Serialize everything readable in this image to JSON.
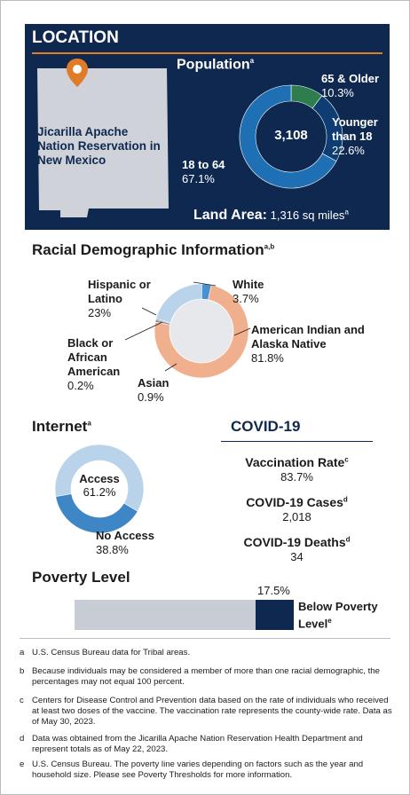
{
  "location": {
    "title": "LOCATION",
    "reservation_label": "Jicarilla Apache Nation Reservation in New Mexico",
    "pin_icon": "map-pin-icon",
    "population_title": "Population",
    "population_sup": "a",
    "population_total": "3,108",
    "land_area_label": "Land Area:",
    "land_area_value": "1,316 sq miles",
    "land_area_sup": "a"
  },
  "racial": {
    "title": "Racial Demographic Information",
    "sup": "a,b"
  },
  "internet": {
    "title": "Internet",
    "sup": "a"
  },
  "covid": {
    "title": "COVID-19",
    "vaccination_label": "Vaccination Rate",
    "vaccination_sup": "c",
    "vaccination_value": "83.7%",
    "cases_label": "COVID-19 Cases",
    "cases_sup": "d",
    "cases_value": "2,018",
    "deaths_label": "COVID-19 Deaths",
    "deaths_sup": "d",
    "deaths_value": "34"
  },
  "poverty": {
    "title": "Poverty Level",
    "value_label": "17.5%",
    "label": "Below Poverty Level",
    "sup": "e"
  },
  "footnotes": [
    {
      "key": "a",
      "text": "U.S. Census Bureau data for Tribal areas."
    },
    {
      "key": "b",
      "text": "Because individuals may be considered a member of more than one racial demographic, the percentages may not equal 100 percent."
    },
    {
      "key": "c",
      "text": "Centers for Disease Control and Prevention data based on the rate of individuals who received at least two doses of the vaccine. The vaccination rate represents the county-wide rate. Data as of May 30, 2023."
    },
    {
      "key": "d",
      "text": "Data was obtained from the Jicarilla Apache Nation Reservation Health Department and represent totals as of May 22, 2023."
    },
    {
      "key": "e",
      "text": "U.S. Census Bureau. The poverty line varies depending on factors such as the year and household size. Please see Poverty Thresholds for more information."
    }
  ],
  "chart_data": [
    {
      "type": "pie",
      "title": "Population",
      "center_label": "3,108",
      "categories": [
        "65 & Older",
        "Younger than 18",
        "18 to 64"
      ],
      "values": [
        10.3,
        22.6,
        67.1
      ],
      "value_labels": [
        "10.3%",
        "22.6%",
        "67.1%"
      ],
      "colors": [
        "#2e7d4f",
        "#0e3d73",
        "#1f6fb5"
      ]
    },
    {
      "type": "pie",
      "title": "Racial Demographic Information",
      "categories": [
        "White",
        "American Indian and Alaska Native",
        "Asian",
        "Black or African American",
        "Hispanic or Latino"
      ],
      "values": [
        3.7,
        81.8,
        0.9,
        0.2,
        23
      ],
      "value_labels": [
        "3.7%",
        "81.8%",
        "0.9%",
        "0.2%",
        "23%"
      ],
      "colors": [
        "#4a90cf",
        "#f0b08e",
        "#8a8f96",
        "#4d4d4d",
        "#b9d4ea"
      ]
    },
    {
      "type": "pie",
      "title": "Internet",
      "categories": [
        "Access",
        "No Access"
      ],
      "values": [
        61.2,
        38.8
      ],
      "value_labels": [
        "61.2%",
        "38.8%"
      ],
      "colors": [
        "#b9d4ea",
        "#3f86c6"
      ]
    },
    {
      "type": "bar",
      "title": "Poverty Level",
      "categories": [
        "Below Poverty Level"
      ],
      "values": [
        17.5
      ],
      "value_labels": [
        "17.5%"
      ],
      "ylim": [
        0,
        100
      ],
      "colors": [
        "#0f2850",
        "#c8cdd5"
      ]
    }
  ]
}
